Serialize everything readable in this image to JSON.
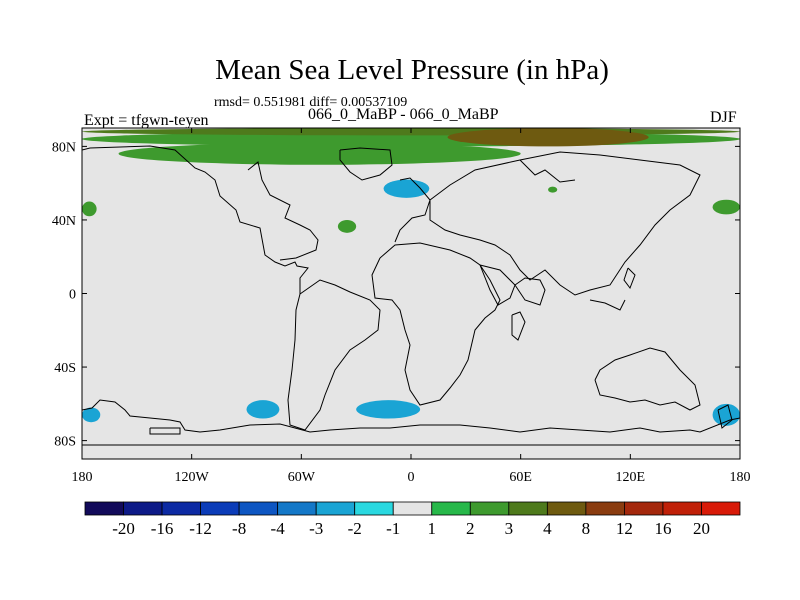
{
  "chart_data": {
    "type": "heatmap",
    "title": "Mean Sea Level Pressure (in hPa)",
    "stats": "rmsd= 0.551981 diff= 0.00537109",
    "experiment": "Expt = tfgwn-teyen",
    "subtitle": "066_0_MaBP - 066_0_MaBP",
    "season": "DJF",
    "xlim": [
      -180,
      180
    ],
    "ylim": [
      -90,
      90
    ],
    "x_ticks": [
      {
        "value": -180,
        "label": "180"
      },
      {
        "value": -120,
        "label": "120W"
      },
      {
        "value": -60,
        "label": "60W"
      },
      {
        "value": 0,
        "label": "0"
      },
      {
        "value": 60,
        "label": "60E"
      },
      {
        "value": 120,
        "label": "120E"
      },
      {
        "value": 180,
        "label": "180"
      }
    ],
    "y_ticks": [
      {
        "value": 80,
        "label": "80N"
      },
      {
        "value": 40,
        "label": "40N"
      },
      {
        "value": 0,
        "label": "0"
      },
      {
        "value": -40,
        "label": "40S"
      },
      {
        "value": -80,
        "label": "80S"
      }
    ],
    "colorbar": {
      "labels": [
        "-20",
        "-16",
        "-12",
        "-8",
        "-4",
        "-3",
        "-2",
        "-1",
        "1",
        "2",
        "3",
        "4",
        "8",
        "12",
        "16",
        "20"
      ],
      "colors": [
        "#120a5a",
        "#0d1a87",
        "#0c2aa3",
        "#0b3cb8",
        "#0e56c2",
        "#1478c8",
        "#1aa4d4",
        "#2ad8e0",
        "#e5e5e5",
        "#27b84a",
        "#3e9a2e",
        "#4e7a1c",
        "#6e5a10",
        "#8a3c10",
        "#a4280c",
        "#c02008",
        "#d81a08"
      ]
    },
    "anomaly_regions": [
      {
        "category": "2",
        "lon": [
          -180,
          180
        ],
        "lat": [
          80,
          88
        ]
      },
      {
        "category": "3",
        "lon": [
          -180,
          180
        ],
        "lat": [
          86,
          90
        ]
      },
      {
        "category": "4",
        "lon": [
          20,
          130
        ],
        "lat": [
          80,
          90
        ]
      },
      {
        "category": "2",
        "lon": [
          -160,
          60
        ],
        "lat": [
          70,
          82
        ]
      },
      {
        "category": "-2",
        "lon": [
          -15,
          10
        ],
        "lat": [
          52,
          62
        ]
      },
      {
        "category": "-2",
        "lon": [
          -180,
          -170
        ],
        "lat": [
          -70,
          -62
        ]
      },
      {
        "category": "-2",
        "lon": [
          -90,
          -72
        ],
        "lat": [
          -68,
          -58
        ]
      },
      {
        "category": "-2",
        "lon": [
          -30,
          5
        ],
        "lat": [
          -68,
          -58
        ]
      },
      {
        "category": "-2",
        "lon": [
          165,
          180
        ],
        "lat": [
          -72,
          -60
        ]
      },
      {
        "category": "2",
        "lon": [
          -180,
          -172
        ],
        "lat": [
          42,
          50
        ]
      },
      {
        "category": "2",
        "lon": [
          -40,
          -30
        ],
        "lat": [
          33,
          40
        ]
      },
      {
        "category": "2",
        "lon": [
          165,
          180
        ],
        "lat": [
          43,
          51
        ]
      },
      {
        "category": "2",
        "lon": [
          75,
          80
        ],
        "lat": [
          55,
          58
        ]
      }
    ]
  }
}
